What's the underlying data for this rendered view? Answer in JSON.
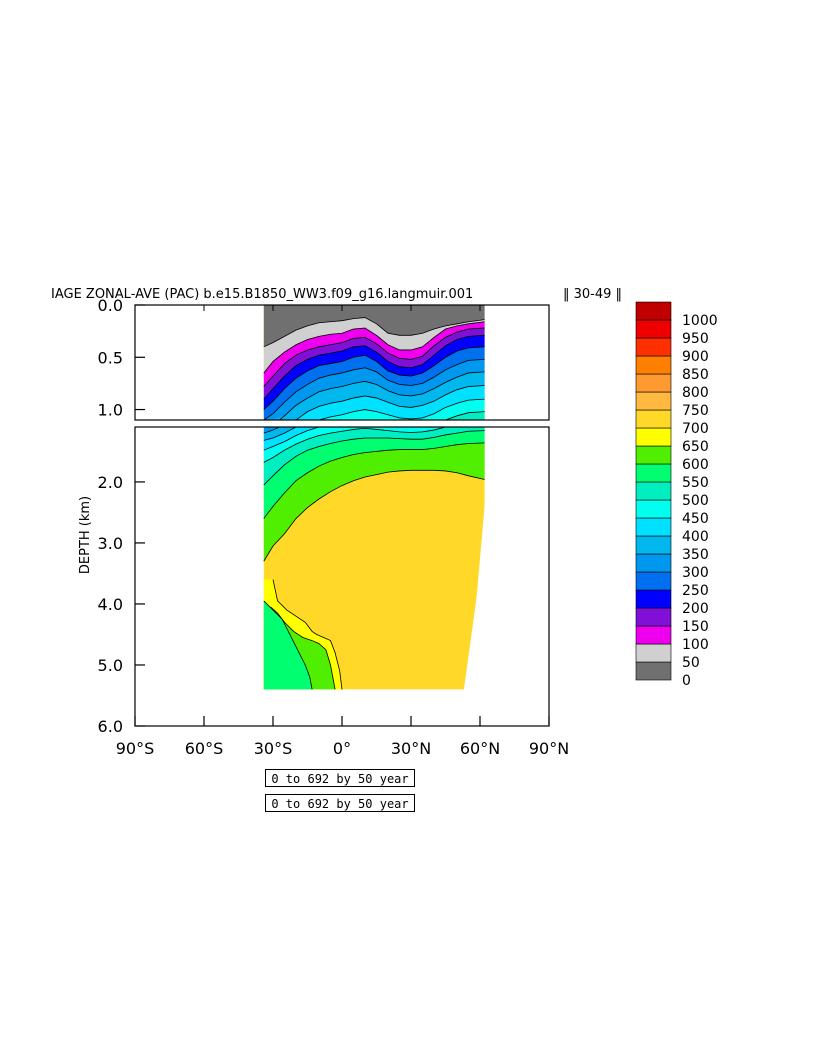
{
  "chart_data": {
    "type": "heatmap",
    "title": "IAGE ZONAL-AVE (PAC) b.e15.B1850_WW3.f09_g16.langmuir.001",
    "title_suffix": "‖ 30-49 ‖",
    "ylabel": "DEPTH (km)",
    "xlabel": "",
    "xlim": [
      -90,
      90
    ],
    "ylim": [
      0,
      6
    ],
    "x_ticks": [
      -90,
      -60,
      -30,
      0,
      30,
      60,
      90
    ],
    "x_tick_labels": [
      "90°S",
      "60°S",
      "30°S",
      "0°",
      "30°N",
      "60°N",
      "90°N"
    ],
    "upper_panel_ylim": [
      0,
      1.1
    ],
    "upper_y_ticks": [
      0.0,
      0.5,
      1.0
    ],
    "upper_y_tick_labels": [
      "0.0",
      "0.5",
      "1.0"
    ],
    "lower_y_ticks": [
      2.0,
      3.0,
      4.0,
      5.0,
      6.0
    ],
    "lower_y_tick_labels": [
      "2.0",
      "3.0",
      "4.0",
      "5.0",
      "6.0"
    ],
    "colorbar": {
      "levels": [
        0,
        50,
        100,
        150,
        200,
        250,
        300,
        350,
        400,
        450,
        500,
        550,
        600,
        650,
        700,
        750,
        800,
        850,
        900,
        950,
        1000
      ],
      "level_labels": [
        "0",
        "50",
        "100",
        "150",
        "200",
        "250",
        "300",
        "350",
        "400",
        "450",
        "500",
        "550",
        "600",
        "650",
        "700",
        "750",
        "800",
        "850",
        "900",
        "950",
        "1000"
      ],
      "colors": [
        "#707070",
        "#d0d0d0",
        "#ee00ee",
        "#8010d8",
        "#0000ff",
        "#0070ee",
        "#0098ee",
        "#00b8ee",
        "#00e0ff",
        "#00ffee",
        "#00eec0",
        "#00ff70",
        "#50ee00",
        "#ffff00",
        "#ffd828",
        "#ffb840",
        "#ff9a30",
        "#ff8000",
        "#ff3000",
        "#ee0000",
        "#c00000"
      ]
    },
    "data_extent": {
      "lat_min": -34,
      "lat_max_upper": 62,
      "lat_max_deep": 53,
      "max_depth_km": 5.4
    },
    "isoline_depths_km": {
      "lat": [
        -34,
        -30,
        -25,
        -20,
        -15,
        -10,
        -5,
        0,
        5,
        10,
        15,
        20,
        25,
        30,
        35,
        40,
        45,
        50,
        55,
        62
      ],
      "levels": [
        {
          "age": 50,
          "depth": [
            0.4,
            0.36,
            0.3,
            0.24,
            0.2,
            0.17,
            0.16,
            0.15,
            0.13,
            0.12,
            0.18,
            0.27,
            0.29,
            0.29,
            0.27,
            0.23,
            0.2,
            0.18,
            0.16,
            0.14
          ]
        },
        {
          "age": 100,
          "depth": [
            0.65,
            0.54,
            0.45,
            0.38,
            0.33,
            0.3,
            0.28,
            0.27,
            0.23,
            0.22,
            0.29,
            0.38,
            0.43,
            0.43,
            0.4,
            0.31,
            0.23,
            0.2,
            0.18,
            0.16
          ]
        },
        {
          "age": 150,
          "depth": [
            0.78,
            0.68,
            0.56,
            0.48,
            0.43,
            0.4,
            0.38,
            0.36,
            0.32,
            0.31,
            0.37,
            0.46,
            0.51,
            0.52,
            0.49,
            0.39,
            0.31,
            0.26,
            0.23,
            0.22
          ]
        },
        {
          "age": 200,
          "depth": [
            0.9,
            0.8,
            0.68,
            0.58,
            0.52,
            0.48,
            0.46,
            0.44,
            0.4,
            0.39,
            0.45,
            0.54,
            0.59,
            0.6,
            0.57,
            0.48,
            0.39,
            0.33,
            0.3,
            0.29
          ]
        },
        {
          "age": 250,
          "depth": [
            1.0,
            0.92,
            0.8,
            0.7,
            0.63,
            0.58,
            0.56,
            0.54,
            0.5,
            0.48,
            0.54,
            0.63,
            0.67,
            0.68,
            0.65,
            0.58,
            0.5,
            0.44,
            0.41,
            0.4
          ]
        },
        {
          "age": 300,
          "depth": [
            1.1,
            1.04,
            0.93,
            0.83,
            0.76,
            0.7,
            0.67,
            0.65,
            0.62,
            0.6,
            0.64,
            0.72,
            0.76,
            0.77,
            0.75,
            0.69,
            0.62,
            0.57,
            0.53,
            0.52
          ]
        },
        {
          "age": 350,
          "depth": [
            1.2,
            1.15,
            1.06,
            0.96,
            0.89,
            0.83,
            0.8,
            0.78,
            0.75,
            0.73,
            0.76,
            0.82,
            0.86,
            0.87,
            0.85,
            0.8,
            0.74,
            0.69,
            0.65,
            0.64
          ]
        },
        {
          "age": 400,
          "depth": [
            1.32,
            1.28,
            1.2,
            1.1,
            1.02,
            0.97,
            0.94,
            0.92,
            0.89,
            0.87,
            0.89,
            0.93,
            0.97,
            0.98,
            0.96,
            0.92,
            0.86,
            0.81,
            0.78,
            0.77
          ]
        },
        {
          "age": 450,
          "depth": [
            1.48,
            1.42,
            1.34,
            1.24,
            1.16,
            1.1,
            1.07,
            1.05,
            1.02,
            1.0,
            1.02,
            1.05,
            1.08,
            1.09,
            1.08,
            1.04,
            0.98,
            0.94,
            0.91,
            0.9
          ]
        },
        {
          "age": 500,
          "depth": [
            1.68,
            1.6,
            1.48,
            1.38,
            1.3,
            1.24,
            1.2,
            1.17,
            1.14,
            1.12,
            1.14,
            1.16,
            1.18,
            1.19,
            1.18,
            1.15,
            1.1,
            1.06,
            1.03,
            1.02
          ]
        },
        {
          "age": 550,
          "depth": [
            2.05,
            1.9,
            1.72,
            1.58,
            1.48,
            1.42,
            1.37,
            1.33,
            1.3,
            1.28,
            1.28,
            1.28,
            1.29,
            1.3,
            1.3,
            1.27,
            1.23,
            1.2,
            1.17,
            1.16
          ]
        },
        {
          "age": 600,
          "depth": [
            2.6,
            2.4,
            2.18,
            1.98,
            1.85,
            1.74,
            1.66,
            1.6,
            1.55,
            1.52,
            1.5,
            1.48,
            1.47,
            1.47,
            1.47,
            1.45,
            1.42,
            1.39,
            1.37,
            1.36
          ]
        },
        {
          "age": 650,
          "depth": [
            3.3,
            3.05,
            2.85,
            2.6,
            2.42,
            2.28,
            2.16,
            2.06,
            1.98,
            1.92,
            1.88,
            1.84,
            1.82,
            1.81,
            1.81,
            1.81,
            1.82,
            1.85,
            1.9,
            1.96
          ]
        }
      ]
    },
    "deep_isolines": [
      {
        "age": 550,
        "points": [
          [
            -34,
            3.95
          ],
          [
            -30,
            4.1
          ],
          [
            -26,
            4.25
          ],
          [
            -22,
            4.55
          ],
          [
            -20,
            4.7
          ],
          [
            -18,
            4.85
          ],
          [
            -16,
            5.0
          ],
          [
            -14,
            5.2
          ],
          [
            -13,
            5.4
          ]
        ]
      },
      {
        "age": 600,
        "points": [
          [
            -31,
            4.05
          ],
          [
            -28,
            4.15
          ],
          [
            -25,
            4.3
          ],
          [
            -21,
            4.45
          ],
          [
            -17,
            4.55
          ],
          [
            -13,
            4.6
          ],
          [
            -10,
            4.65
          ],
          [
            -7,
            4.75
          ],
          [
            -5,
            5.0
          ],
          [
            -4,
            5.2
          ],
          [
            -3,
            5.4
          ]
        ]
      },
      {
        "age": 650,
        "points": [
          [
            -30,
            3.6
          ],
          [
            -28,
            3.95
          ],
          [
            -24,
            4.1
          ],
          [
            -20,
            4.2
          ],
          [
            -16,
            4.3
          ],
          [
            -13,
            4.45
          ],
          [
            -11,
            4.5
          ],
          [
            -8,
            4.55
          ],
          [
            -5,
            4.6
          ],
          [
            -3,
            4.8
          ],
          [
            -1,
            5.1
          ],
          [
            0,
            5.4
          ]
        ]
      }
    ]
  },
  "period_labels": [
    "0 to 692 by 50 year",
    "0 to 692 by 50 year"
  ]
}
